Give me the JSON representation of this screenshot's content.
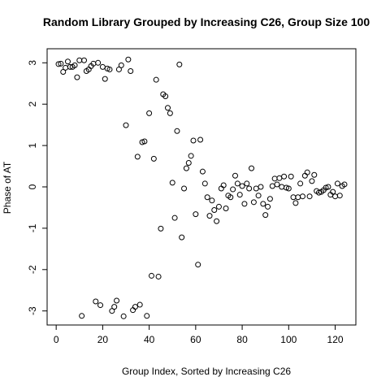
{
  "chart_data": {
    "type": "scatter",
    "title": "Random Library Grouped by Increasing C26, Group Size 100",
    "x_label": "Group Index, Sorted by Increasing C26",
    "y_label": "Phase of AT",
    "x": [
      1,
      2,
      3,
      4,
      5,
      6,
      7,
      8,
      9,
      10,
      11,
      12,
      13,
      14,
      15,
      16,
      17,
      18,
      19,
      20,
      21,
      22,
      23,
      24,
      25,
      26,
      27,
      28,
      29,
      30,
      31,
      32,
      33,
      34,
      35,
      36,
      37,
      38,
      39,
      40,
      41,
      42,
      43,
      44,
      45,
      46,
      47,
      48,
      49,
      50,
      51,
      52,
      53,
      54,
      55,
      56,
      57,
      58,
      59,
      60,
      61,
      62,
      63,
      64,
      65,
      66,
      67,
      68,
      69,
      70,
      71,
      72,
      73,
      74,
      75,
      76,
      77,
      78,
      79,
      80,
      81,
      82,
      83,
      84,
      85,
      86,
      87,
      88,
      89,
      90,
      91,
      92,
      93,
      94,
      95,
      96,
      97,
      98,
      99,
      100,
      101,
      102,
      103,
      104,
      105,
      106,
      107,
      108,
      109,
      110,
      111,
      112,
      113,
      114,
      115,
      116,
      117,
      118,
      119,
      120,
      121,
      122,
      123,
      124
    ],
    "values": [
      2.97,
      2.98,
      2.78,
      2.88,
      3.03,
      2.9,
      2.9,
      2.94,
      2.65,
      3.06,
      -3.12,
      3.06,
      2.8,
      2.84,
      2.92,
      2.98,
      -2.77,
      3.0,
      -2.86,
      2.9,
      2.61,
      2.86,
      2.84,
      -3.0,
      -2.9,
      -2.75,
      2.84,
      2.94,
      -3.13,
      1.49,
      3.08,
      2.8,
      -2.98,
      -2.9,
      0.73,
      -2.85,
      1.08,
      1.1,
      -3.12,
      1.78,
      -2.15,
      0.68,
      2.59,
      -2.17,
      -1.01,
      2.24,
      2.19,
      1.91,
      1.78,
      0.1,
      -0.75,
      1.35,
      2.96,
      -1.22,
      -0.04,
      0.45,
      0.58,
      0.75,
      1.12,
      -0.66,
      -1.88,
      1.14,
      0.37,
      0.08,
      -0.25,
      -0.7,
      -0.33,
      -0.56,
      -0.83,
      -0.48,
      -0.04,
      0.04,
      -0.52,
      -0.21,
      -0.25,
      -0.06,
      0.27,
      0.08,
      -0.19,
      0.02,
      -0.41,
      0.08,
      -0.04,
      0.45,
      -0.37,
      -0.04,
      -0.21,
      0.0,
      -0.41,
      -0.68,
      -0.48,
      -0.29,
      0.02,
      0.2,
      0.06,
      0.21,
      0.0,
      0.25,
      -0.02,
      -0.04,
      0.25,
      -0.25,
      -0.39,
      -0.25,
      0.08,
      -0.23,
      0.27,
      0.35,
      -0.23,
      0.14,
      0.29,
      -0.1,
      -0.14,
      -0.12,
      -0.08,
      -0.02,
      0.0,
      -0.19,
      -0.12,
      -0.23,
      0.08,
      -0.21,
      0.02,
      0.06
    ],
    "color": "#000000",
    "xlim": [
      -3.9,
      128.9
    ],
    "ylim": [
      -3.34,
      3.34
    ],
    "xticks": [
      0,
      20,
      40,
      60,
      80,
      100,
      120
    ],
    "yticks": [
      -3,
      -2,
      -1,
      0,
      1,
      2,
      3
    ]
  }
}
